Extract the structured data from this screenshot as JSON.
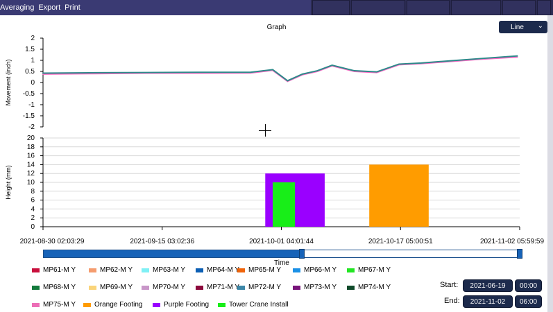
{
  "menu": {
    "items": [
      "Averaging",
      "Export",
      "Print"
    ]
  },
  "graph": {
    "title": "Graph",
    "chart_type_select": "Line"
  },
  "chart_data": [
    {
      "type": "line",
      "ylabel": "Movement (inch)",
      "ylim": [
        -2,
        2
      ],
      "yticks": [
        "2",
        "1.5",
        "1",
        "0.5",
        "0",
        "-0.5",
        "-1",
        "-1.5",
        "-2"
      ],
      "series": [
        {
          "values_description_free": true,
          "color": "#ff69c4",
          "x": [
            "2021-08-30",
            "2021-09-06",
            "2021-09-13",
            "2021-09-20",
            "2021-09-27",
            "2021-09-30",
            "2021-10-02",
            "2021-10-04",
            "2021-10-06",
            "2021-10-08",
            "2021-10-11",
            "2021-10-14",
            "2021-10-17",
            "2021-10-20",
            "2021-10-24",
            "2021-10-28",
            "2021-11-02"
          ],
          "values": [
            0.38,
            0.4,
            0.42,
            0.42,
            0.43,
            0.55,
            0.05,
            0.35,
            0.5,
            0.75,
            0.5,
            0.45,
            0.8,
            0.85,
            0.95,
            1.05,
            1.15
          ]
        },
        {
          "color": "#2d8a8a",
          "x": [
            "2021-08-30",
            "2021-09-06",
            "2021-09-13",
            "2021-09-20",
            "2021-09-27",
            "2021-09-30",
            "2021-10-02",
            "2021-10-04",
            "2021-10-06",
            "2021-10-08",
            "2021-10-11",
            "2021-10-14",
            "2021-10-17",
            "2021-10-20",
            "2021-10-24",
            "2021-10-28",
            "2021-11-02"
          ],
          "values": [
            0.42,
            0.44,
            0.45,
            0.46,
            0.46,
            0.58,
            0.08,
            0.38,
            0.53,
            0.78,
            0.53,
            0.48,
            0.83,
            0.88,
            0.98,
            1.08,
            1.2
          ]
        }
      ]
    },
    {
      "type": "bar",
      "ylabel": "Height (mm)",
      "xlabel": "Time",
      "ylim": [
        0,
        20
      ],
      "yticks": [
        "20",
        "18",
        "16",
        "14",
        "12",
        "10",
        "8",
        "6",
        "4",
        "2",
        "0"
      ],
      "xticks": [
        "2021-08-30 02:03:29",
        "2021-09-15 03:02:36",
        "2021-10-01 04:01:44",
        "2021-10-17 05:00:51",
        "2021-11-02 05:59:59"
      ],
      "series": [
        {
          "name": "Purple Footing",
          "color": "#9a00ff",
          "x_start": "2021-09-29",
          "x_end": "2021-10-07",
          "value": 12
        },
        {
          "name": "Tower Crane Install",
          "color": "#18ee18",
          "x_start": "2021-09-30",
          "x_end": "2021-10-03",
          "value": 10
        },
        {
          "name": "Orange Footing",
          "color": "#ff9c00",
          "x_start": "2021-10-13",
          "x_end": "2021-10-21",
          "value": 14
        }
      ]
    }
  ],
  "time_axis_label": "Time",
  "slider": {
    "position": 0.54
  },
  "legend": [
    {
      "label": "MP61-M Y",
      "color": "#c80f3c"
    },
    {
      "label": "MP62-M Y",
      "color": "#f59c6e"
    },
    {
      "label": "MP63-M Y",
      "color": "#7ff0f5"
    },
    {
      "label": "MP64-M Y",
      "color": "#0c5fb4"
    },
    {
      "label": "MP65-M Y",
      "color": "#f0640a"
    },
    {
      "label": "MP66-M Y",
      "color": "#1a90e6"
    },
    {
      "label": "MP67-M Y",
      "color": "#22e622"
    },
    {
      "label": "MP68-M Y",
      "color": "#137a3c"
    },
    {
      "label": "MP69-M Y",
      "color": "#fad47a"
    },
    {
      "label": "MP70-M Y",
      "color": "#c896c8"
    },
    {
      "label": "MP71-M Y",
      "color": "#8c0a3c"
    },
    {
      "label": "MP72-M Y",
      "color": "#3c87a8"
    },
    {
      "label": "MP73-M Y",
      "color": "#78147a"
    },
    {
      "label": "MP74-M Y",
      "color": "#0f4a2a"
    },
    {
      "label": "MP75-M Y",
      "color": "#ec6eb6"
    },
    {
      "label": "Orange Footing",
      "color": "#ff9c00"
    },
    {
      "label": "Purple Footing",
      "color": "#9a00ff"
    },
    {
      "label": "Tower Crane Install",
      "color": "#18ee18"
    }
  ],
  "range": {
    "start_label": "Start:",
    "start_date": "2021-06-19",
    "start_time": "00:00",
    "end_label": "End:",
    "end_date": "2021-11-02",
    "end_time": "06:00"
  }
}
